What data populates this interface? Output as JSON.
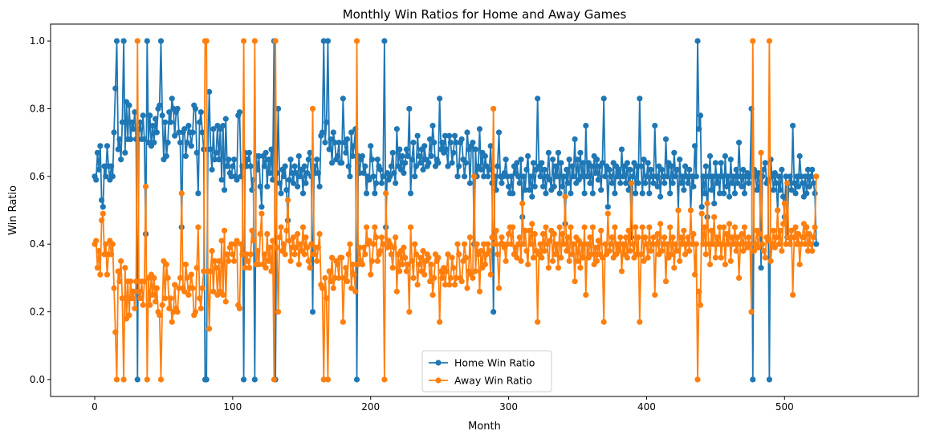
{
  "chart_data": {
    "type": "line",
    "title": "Monthly Win Ratios for Home and Away Games",
    "xlabel": "Month",
    "ylabel": "Win Ratio",
    "xlim": [
      -32,
      597
    ],
    "ylim": [
      -0.05,
      1.05
    ],
    "xticks": [
      0,
      100,
      200,
      300,
      400,
      500
    ],
    "yticks": [
      0.0,
      0.2,
      0.4,
      0.6,
      0.8,
      1.0
    ],
    "grid": false,
    "legend_placement": "lower-center",
    "x_start": 0,
    "series": [
      {
        "name": "Home Win Ratio",
        "color": "#1f77b4",
        "values": [
          0.6,
          0.59,
          0.67,
          0.62,
          0.69,
          0.53,
          0.51,
          0.63,
          0.6,
          0.69,
          0.63,
          0.59,
          0.63,
          0.6,
          0.73,
          0.86,
          1.0,
          0.68,
          0.71,
          0.65,
          0.76,
          1.0,
          0.67,
          0.82,
          0.71,
          0.81,
          0.71,
          0.76,
          0.74,
          0.79,
          0.71,
          0.0,
          0.74,
          0.76,
          0.71,
          0.78,
          0.71,
          0.43,
          1.0,
          0.7,
          0.78,
          0.69,
          0.75,
          0.7,
          0.77,
          0.73,
          0.8,
          0.81,
          1.0,
          0.78,
          0.65,
          0.76,
          0.66,
          0.7,
          0.79,
          0.76,
          0.83,
          0.8,
          0.72,
          0.79,
          0.8,
          0.73,
          0.7,
          0.45,
          0.73,
          0.74,
          0.66,
          0.7,
          0.75,
          0.73,
          0.69,
          0.73,
          0.81,
          0.8,
          0.67,
          0.55,
          0.76,
          0.79,
          0.73,
          0.68,
          0.0,
          0.0,
          0.68,
          0.85,
          0.68,
          0.62,
          0.74,
          0.65,
          0.67,
          0.75,
          0.65,
          0.74,
          0.59,
          0.75,
          0.56,
          0.77,
          0.63,
          0.65,
          0.61,
          0.6,
          0.63,
          0.65,
          0.6,
          0.59,
          0.78,
          0.79,
          0.6,
          0.63,
          0.0,
          0.67,
          0.63,
          0.65,
          0.67,
          0.63,
          0.56,
          0.59,
          0.0,
          0.66,
          0.62,
          0.66,
          0.57,
          0.51,
          0.66,
          0.63,
          0.67,
          0.57,
          0.65,
          0.61,
          0.68,
          0.59,
          1.0,
          0.0,
          0.61,
          0.8,
          0.58,
          0.55,
          0.62,
          0.6,
          0.63,
          0.56,
          0.47,
          0.59,
          0.65,
          0.61,
          0.58,
          0.63,
          0.61,
          0.57,
          0.66,
          0.6,
          0.62,
          0.55,
          0.63,
          0.58,
          0.61,
          0.65,
          0.67,
          0.6,
          0.2,
          0.63,
          0.61,
          0.65,
          0.61,
          0.57,
          0.72,
          0.73,
          1.0,
          0.7,
          0.76,
          1.0,
          0.68,
          0.71,
          0.64,
          0.73,
          0.7,
          0.65,
          0.66,
          0.7,
          0.64,
          0.64,
          0.83,
          0.7,
          0.67,
          0.71,
          0.63,
          0.6,
          0.73,
          0.66,
          0.69,
          0.74,
          0.0,
          0.66,
          0.61,
          0.65,
          0.66,
          0.61,
          0.63,
          0.55,
          0.6,
          0.59,
          0.69,
          0.65,
          0.6,
          0.55,
          0.58,
          0.65,
          0.63,
          0.62,
          0.58,
          0.6,
          1.0,
          0.45,
          0.61,
          0.59,
          0.6,
          0.63,
          0.67,
          0.61,
          0.58,
          0.74,
          0.63,
          0.68,
          0.62,
          0.66,
          0.61,
          0.64,
          0.68,
          0.66,
          0.8,
          0.55,
          0.65,
          0.7,
          0.6,
          0.63,
          0.72,
          0.66,
          0.64,
          0.68,
          0.62,
          0.69,
          0.65,
          0.63,
          0.64,
          0.71,
          0.66,
          0.75,
          0.7,
          0.63,
          0.65,
          0.64,
          0.83,
          0.68,
          0.7,
          0.67,
          0.72,
          0.68,
          0.63,
          0.72,
          0.7,
          0.64,
          0.67,
          0.72,
          0.7,
          0.6,
          0.63,
          0.7,
          0.71,
          0.65,
          0.6,
          0.64,
          0.73,
          0.68,
          0.58,
          0.69,
          0.7,
          0.4,
          0.68,
          0.6,
          0.63,
          0.74,
          0.62,
          0.67,
          0.6,
          0.66,
          0.63,
          0.6,
          0.62,
          0.69,
          0.58,
          0.2,
          0.6,
          0.56,
          0.63,
          0.73,
          0.6,
          0.58,
          0.6,
          0.61,
          0.65,
          0.6,
          0.57,
          0.55,
          0.6,
          0.55,
          0.63,
          0.61,
          0.64,
          0.6,
          0.58,
          0.65,
          0.48,
          0.6,
          0.56,
          0.62,
          0.66,
          0.56,
          0.6,
          0.54,
          0.64,
          0.57,
          0.62,
          0.83,
          0.63,
          0.6,
          0.64,
          0.57,
          0.62,
          0.55,
          0.6,
          0.67,
          0.59,
          0.56,
          0.65,
          0.57,
          0.63,
          0.6,
          0.67,
          0.55,
          0.64,
          0.57,
          0.6,
          0.46,
          0.62,
          0.58,
          0.65,
          0.55,
          0.63,
          0.6,
          0.71,
          0.58,
          0.65,
          0.59,
          0.67,
          0.6,
          0.64,
          0.55,
          0.75,
          0.6,
          0.64,
          0.58,
          0.63,
          0.55,
          0.66,
          0.61,
          0.65,
          0.59,
          0.63,
          0.56,
          0.64,
          0.83,
          0.6,
          0.63,
          0.51,
          0.62,
          0.6,
          0.58,
          0.64,
          0.55,
          0.63,
          0.6,
          0.62,
          0.58,
          0.68,
          0.6,
          0.63,
          0.58,
          0.64,
          0.56,
          0.62,
          0.42,
          0.6,
          0.64,
          0.55,
          0.63,
          0.58,
          0.83,
          0.63,
          0.55,
          0.65,
          0.58,
          0.6,
          0.64,
          0.55,
          0.62,
          0.6,
          0.58,
          0.75,
          0.6,
          0.57,
          0.63,
          0.54,
          0.62,
          0.6,
          0.58,
          0.71,
          0.6,
          0.64,
          0.55,
          0.63,
          0.58,
          0.67,
          0.6,
          0.62,
          0.5,
          0.65,
          0.58,
          0.6,
          0.56,
          0.63,
          0.6,
          0.58,
          0.62,
          0.5,
          0.6,
          0.57,
          0.69,
          0.6,
          1.0,
          0.74,
          0.78,
          0.51,
          0.6,
          0.55,
          0.63,
          0.48,
          0.6,
          0.66,
          0.56,
          0.6,
          0.52,
          0.64,
          0.58,
          0.6,
          0.55,
          0.64,
          0.6,
          0.55,
          0.66,
          0.57,
          0.6,
          0.54,
          0.65,
          0.58,
          0.6,
          0.55,
          0.62,
          0.58,
          0.7,
          0.6,
          0.57,
          0.62,
          0.55,
          0.6,
          0.61,
          0.58,
          0.6,
          0.8,
          0.0,
          0.62,
          0.6,
          0.56,
          0.61,
          0.57,
          0.33,
          0.6,
          0.62,
          0.64,
          0.58,
          0.59,
          0.0,
          0.65,
          0.6,
          0.56,
          0.61,
          0.58,
          0.5,
          0.6,
          0.56,
          0.62,
          0.54,
          0.48,
          0.6,
          0.42,
          0.58,
          0.6,
          0.56,
          0.75,
          0.58,
          0.55,
          0.6,
          0.57,
          0.66,
          0.6,
          0.58,
          0.54,
          0.6,
          0.55,
          0.62,
          0.57,
          0.6,
          0.62,
          0.58,
          0.55,
          0.4
        ]
      },
      {
        "name": "Away Win Ratio",
        "color": "#ff7f0e",
        "values": [
          0.4,
          0.41,
          0.33,
          0.38,
          0.31,
          0.47,
          0.49,
          0.37,
          0.4,
          0.31,
          0.37,
          0.41,
          0.37,
          0.4,
          0.27,
          0.14,
          0.0,
          0.32,
          0.29,
          0.35,
          0.24,
          0.0,
          0.33,
          0.18,
          0.29,
          0.19,
          0.29,
          0.24,
          0.26,
          0.21,
          0.29,
          1.0,
          0.26,
          0.24,
          0.29,
          0.22,
          0.29,
          0.57,
          0.0,
          0.3,
          0.22,
          0.31,
          0.25,
          0.3,
          0.23,
          0.27,
          0.2,
          0.19,
          0.0,
          0.22,
          0.35,
          0.24,
          0.34,
          0.3,
          0.21,
          0.24,
          0.17,
          0.2,
          0.28,
          0.21,
          0.2,
          0.27,
          0.3,
          0.55,
          0.27,
          0.26,
          0.34,
          0.3,
          0.25,
          0.27,
          0.31,
          0.27,
          0.19,
          0.2,
          0.33,
          0.45,
          0.24,
          0.21,
          0.27,
          0.32,
          1.0,
          1.0,
          0.32,
          0.15,
          0.32,
          0.38,
          0.26,
          0.35,
          0.33,
          0.25,
          0.35,
          0.26,
          0.41,
          0.25,
          0.44,
          0.23,
          0.37,
          0.35,
          0.39,
          0.4,
          0.37,
          0.35,
          0.4,
          0.41,
          0.22,
          0.21,
          0.4,
          0.37,
          1.0,
          0.33,
          0.37,
          0.35,
          0.33,
          0.37,
          0.44,
          0.41,
          1.0,
          0.34,
          0.38,
          0.34,
          0.43,
          0.49,
          0.34,
          0.37,
          0.33,
          0.43,
          0.35,
          0.39,
          0.32,
          0.41,
          0.0,
          1.0,
          0.39,
          0.2,
          0.42,
          0.45,
          0.38,
          0.4,
          0.37,
          0.44,
          0.53,
          0.41,
          0.35,
          0.39,
          0.42,
          0.37,
          0.39,
          0.43,
          0.34,
          0.4,
          0.38,
          0.45,
          0.37,
          0.42,
          0.39,
          0.35,
          0.33,
          0.4,
          0.8,
          0.37,
          0.39,
          0.35,
          0.39,
          0.43,
          0.28,
          0.27,
          0.0,
          0.3,
          0.24,
          0.0,
          0.32,
          0.29,
          0.36,
          0.27,
          0.3,
          0.35,
          0.34,
          0.3,
          0.36,
          0.36,
          0.17,
          0.3,
          0.33,
          0.29,
          0.37,
          0.4,
          0.27,
          0.34,
          0.31,
          0.26,
          1.0,
          0.34,
          0.39,
          0.35,
          0.34,
          0.39,
          0.37,
          0.45,
          0.4,
          0.41,
          0.31,
          0.35,
          0.4,
          0.45,
          0.42,
          0.35,
          0.37,
          0.38,
          0.42,
          0.4,
          0.0,
          0.55,
          0.39,
          0.41,
          0.4,
          0.37,
          0.33,
          0.39,
          0.42,
          0.26,
          0.37,
          0.32,
          0.38,
          0.34,
          0.39,
          0.36,
          0.32,
          0.34,
          0.2,
          0.45,
          0.35,
          0.3,
          0.4,
          0.37,
          0.28,
          0.34,
          0.36,
          0.32,
          0.38,
          0.31,
          0.35,
          0.37,
          0.36,
          0.29,
          0.34,
          0.25,
          0.3,
          0.37,
          0.35,
          0.36,
          0.17,
          0.32,
          0.3,
          0.33,
          0.28,
          0.32,
          0.37,
          0.28,
          0.3,
          0.36,
          0.33,
          0.28,
          0.3,
          0.4,
          0.37,
          0.3,
          0.29,
          0.35,
          0.4,
          0.36,
          0.27,
          0.32,
          0.42,
          0.31,
          0.3,
          0.6,
          0.32,
          0.4,
          0.37,
          0.26,
          0.38,
          0.33,
          0.4,
          0.34,
          0.37,
          0.4,
          0.38,
          0.31,
          0.42,
          0.8,
          0.4,
          0.44,
          0.37,
          0.27,
          0.4,
          0.42,
          0.4,
          0.39,
          0.35,
          0.4,
          0.43,
          0.45,
          0.4,
          0.45,
          0.37,
          0.39,
          0.36,
          0.4,
          0.42,
          0.35,
          0.52,
          0.4,
          0.44,
          0.38,
          0.34,
          0.44,
          0.4,
          0.46,
          0.36,
          0.43,
          0.38,
          0.17,
          0.37,
          0.4,
          0.36,
          0.43,
          0.38,
          0.45,
          0.4,
          0.33,
          0.41,
          0.44,
          0.35,
          0.43,
          0.37,
          0.4,
          0.33,
          0.45,
          0.36,
          0.43,
          0.4,
          0.54,
          0.38,
          0.42,
          0.35,
          0.45,
          0.37,
          0.4,
          0.29,
          0.42,
          0.35,
          0.41,
          0.33,
          0.4,
          0.36,
          0.45,
          0.25,
          0.4,
          0.36,
          0.42,
          0.37,
          0.45,
          0.34,
          0.39,
          0.35,
          0.41,
          0.37,
          0.44,
          0.36,
          0.17,
          0.4,
          0.37,
          0.49,
          0.38,
          0.4,
          0.42,
          0.36,
          0.45,
          0.37,
          0.4,
          0.38,
          0.42,
          0.32,
          0.4,
          0.37,
          0.42,
          0.36,
          0.44,
          0.38,
          0.58,
          0.4,
          0.36,
          0.45,
          0.37,
          0.42,
          0.17,
          0.37,
          0.45,
          0.35,
          0.42,
          0.4,
          0.36,
          0.45,
          0.38,
          0.4,
          0.42,
          0.25,
          0.4,
          0.43,
          0.37,
          0.46,
          0.38,
          0.4,
          0.42,
          0.29,
          0.4,
          0.36,
          0.45,
          0.37,
          0.42,
          0.33,
          0.4,
          0.38,
          0.5,
          0.35,
          0.42,
          0.4,
          0.44,
          0.37,
          0.4,
          0.42,
          0.38,
          0.5,
          0.4,
          0.43,
          0.31,
          0.4,
          0.0,
          0.26,
          0.22,
          0.49,
          0.4,
          0.45,
          0.37,
          0.52,
          0.4,
          0.34,
          0.44,
          0.4,
          0.48,
          0.36,
          0.42,
          0.4,
          0.45,
          0.36,
          0.4,
          0.45,
          0.34,
          0.43,
          0.4,
          0.46,
          0.35,
          0.42,
          0.4,
          0.45,
          0.38,
          0.42,
          0.3,
          0.4,
          0.43,
          0.38,
          0.45,
          0.4,
          0.39,
          0.42,
          0.4,
          0.2,
          1.0,
          0.38,
          0.4,
          0.44,
          0.39,
          0.43,
          0.67,
          0.4,
          0.38,
          0.36,
          0.42,
          0.41,
          1.0,
          0.35,
          0.4,
          0.44,
          0.39,
          0.42,
          0.5,
          0.4,
          0.44,
          0.38,
          0.46,
          0.52,
          0.4,
          0.58,
          0.42,
          0.4,
          0.44,
          0.25,
          0.42,
          0.45,
          0.4,
          0.43,
          0.34,
          0.4,
          0.42,
          0.46,
          0.4,
          0.45,
          0.38,
          0.43,
          0.4,
          0.38,
          0.42,
          0.45,
          0.6
        ]
      }
    ]
  }
}
